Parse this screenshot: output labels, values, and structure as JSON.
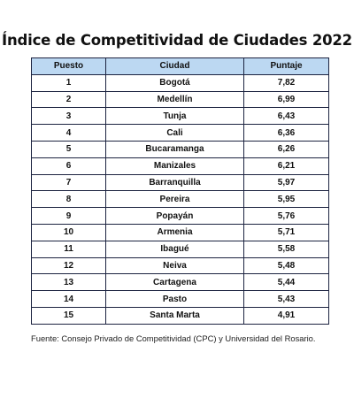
{
  "title": "Índice de Competitividad de Ciudades 2022",
  "table": {
    "headers": [
      "Puesto",
      "Ciudad",
      "Puntaje"
    ],
    "rows": [
      [
        "1",
        "Bogotá",
        "7,82"
      ],
      [
        "2",
        "Medellín",
        "6,99"
      ],
      [
        "3",
        "Tunja",
        "6,43"
      ],
      [
        "4",
        "Cali",
        "6,36"
      ],
      [
        "5",
        "Bucaramanga",
        "6,26"
      ],
      [
        "6",
        "Manizales",
        "6,21"
      ],
      [
        "7",
        "Barranquilla",
        "5,97"
      ],
      [
        "8",
        "Pereira",
        "5,95"
      ],
      [
        "9",
        "Popayán",
        "5,76"
      ],
      [
        "10",
        "Armenia",
        "5,71"
      ],
      [
        "11",
        "Ibagué",
        "5,58"
      ],
      [
        "12",
        "Neiva",
        "5,48"
      ],
      [
        "13",
        "Cartagena",
        "5,44"
      ],
      [
        "14",
        "Pasto",
        "5,43"
      ],
      [
        "15",
        "Santa Marta",
        "4,91"
      ]
    ]
  },
  "source": "Fuente: Consejo Privado de Competitividad (CPC) y Universidad del Rosario.",
  "colors": {
    "header_background": "#bcd8f2",
    "border": "#1c2340",
    "text": "#111111"
  }
}
